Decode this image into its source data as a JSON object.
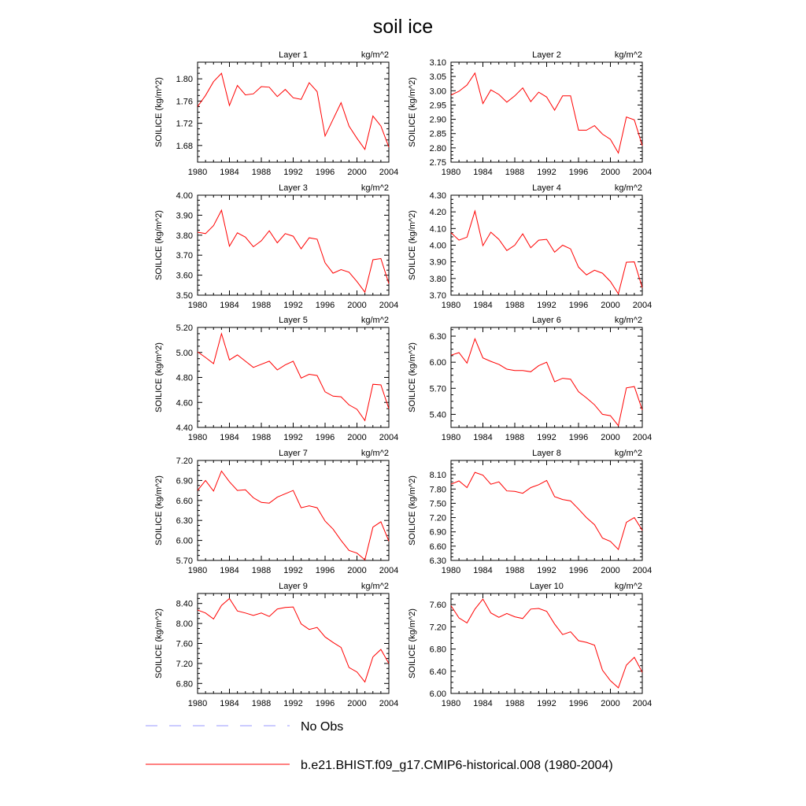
{
  "figure": {
    "title": "soil ice",
    "line_color": "#ff0000",
    "obs_color": "#9999ff"
  },
  "legend": {
    "obs_label": "No Obs",
    "model_label": "b.e21.BHIST.f09_g17.CMIP6-historical.008 (1980-2004)"
  },
  "chart_data": [
    {
      "type": "line",
      "title": "Layer 1",
      "units": "kg/m^2",
      "ylabel": "SOILICE  (kg/m^2)",
      "xlim": [
        1980,
        2004
      ],
      "xticks": [
        "1980",
        "1984",
        "1988",
        "1992",
        "1996",
        "2000",
        "2004"
      ],
      "ylim": [
        1.65,
        1.83
      ],
      "yticks": [
        "1.68",
        "1.72",
        "1.76",
        "1.80"
      ],
      "series": [
        {
          "name": "b.e21.BHIST.f09_g17.CMIP6-historical.008 (1980-2004)",
          "x": [
            1980,
            1981,
            1982,
            1983,
            1984,
            1985,
            1986,
            1987,
            1988,
            1989,
            1990,
            1991,
            1992,
            1993,
            1994,
            1995,
            1996,
            1997,
            1998,
            1999,
            2000,
            2001,
            2002,
            2003,
            2004
          ],
          "values": [
            1.75,
            1.77,
            1.795,
            1.81,
            1.752,
            1.788,
            1.771,
            1.773,
            1.786,
            1.785,
            1.768,
            1.781,
            1.766,
            1.763,
            1.793,
            1.777,
            1.697,
            1.727,
            1.757,
            1.715,
            1.693,
            1.673,
            1.733,
            1.715,
            1.677
          ]
        }
      ]
    },
    {
      "type": "line",
      "title": "Layer 2",
      "units": "kg/m^2",
      "ylabel": "SOILICE  (kg/m^2)",
      "xlim": [
        1980,
        2004
      ],
      "xticks": [
        "1980",
        "1984",
        "1988",
        "1992",
        "1996",
        "2000",
        "2004"
      ],
      "ylim": [
        2.75,
        3.1
      ],
      "yticks": [
        "2.75",
        "2.80",
        "2.85",
        "2.90",
        "2.95",
        "3.00",
        "3.05",
        "3.10"
      ],
      "series": [
        {
          "name": "b.e21.BHIST.f09_g17.CMIP6-historical.008 (1980-2004)",
          "x": [
            1980,
            1981,
            1982,
            1983,
            1984,
            1985,
            1986,
            1987,
            1988,
            1989,
            1990,
            1991,
            1992,
            1993,
            1994,
            1995,
            1996,
            1997,
            1998,
            1999,
            2000,
            2001,
            2002,
            2003,
            2004
          ],
          "values": [
            2.985,
            2.998,
            3.02,
            3.062,
            2.955,
            3.003,
            2.987,
            2.96,
            2.982,
            3.01,
            2.962,
            2.995,
            2.978,
            2.932,
            2.982,
            2.982,
            2.862,
            2.862,
            2.878,
            2.848,
            2.83,
            2.782,
            2.908,
            2.898,
            2.808
          ]
        }
      ]
    },
    {
      "type": "line",
      "title": "Layer 3",
      "units": "kg/m^2",
      "ylabel": "SOILICE  (kg/m^2)",
      "xlim": [
        1980,
        2004
      ],
      "xticks": [
        "1980",
        "1984",
        "1988",
        "1992",
        "1996",
        "2000",
        "2004"
      ],
      "ylim": [
        3.5,
        4.0
      ],
      "yticks": [
        "3.50",
        "3.60",
        "3.70",
        "3.80",
        "3.90",
        "4.00"
      ],
      "series": [
        {
          "name": "b.e21.BHIST.f09_g17.CMIP6-historical.008 (1980-2004)",
          "x": [
            1980,
            1981,
            1982,
            1983,
            1984,
            1985,
            1986,
            1987,
            1988,
            1989,
            1990,
            1991,
            1992,
            1993,
            1994,
            1995,
            1996,
            1997,
            1998,
            1999,
            2000,
            2001,
            2002,
            2003,
            2004
          ],
          "values": [
            3.815,
            3.808,
            3.848,
            3.925,
            3.745,
            3.812,
            3.79,
            3.742,
            3.772,
            3.822,
            3.762,
            3.808,
            3.795,
            3.732,
            3.787,
            3.78,
            3.662,
            3.61,
            3.628,
            3.615,
            3.568,
            3.515,
            3.677,
            3.683,
            3.558
          ]
        }
      ]
    },
    {
      "type": "line",
      "title": "Layer 4",
      "units": "kg/m^2",
      "ylabel": "SOILICE  (kg/m^2)",
      "xlim": [
        1980,
        2004
      ],
      "xticks": [
        "1980",
        "1984",
        "1988",
        "1992",
        "1996",
        "2000",
        "2004"
      ],
      "ylim": [
        3.7,
        4.3
      ],
      "yticks": [
        "3.70",
        "3.80",
        "3.90",
        "4.00",
        "4.10",
        "4.20",
        "4.30"
      ],
      "series": [
        {
          "name": "b.e21.BHIST.f09_g17.CMIP6-historical.008 (1980-2004)",
          "x": [
            1980,
            1981,
            1982,
            1983,
            1984,
            1985,
            1986,
            1987,
            1988,
            1989,
            1990,
            1991,
            1992,
            1993,
            1994,
            1995,
            1996,
            1997,
            1998,
            1999,
            2000,
            2001,
            2002,
            2003,
            2004
          ],
          "values": [
            4.075,
            4.03,
            4.048,
            4.205,
            3.997,
            4.078,
            4.035,
            3.968,
            4.0,
            4.068,
            3.985,
            4.03,
            4.035,
            3.958,
            4.0,
            3.978,
            3.868,
            3.822,
            3.85,
            3.832,
            3.782,
            3.708,
            3.898,
            3.9,
            3.745
          ]
        }
      ]
    },
    {
      "type": "line",
      "title": "Layer 5",
      "units": "kg/m^2",
      "ylabel": "SOILICE  (kg/m^2)",
      "xlim": [
        1980,
        2004
      ],
      "xticks": [
        "1980",
        "1984",
        "1988",
        "1992",
        "1996",
        "2000",
        "2004"
      ],
      "ylim": [
        4.4,
        5.2
      ],
      "yticks": [
        "4.40",
        "4.60",
        "4.80",
        "5.00",
        "5.20"
      ],
      "series": [
        {
          "name": "b.e21.BHIST.f09_g17.CMIP6-historical.008 (1980-2004)",
          "x": [
            1980,
            1981,
            1982,
            1983,
            1984,
            1985,
            1986,
            1987,
            1988,
            1989,
            1990,
            1991,
            1992,
            1993,
            1994,
            1995,
            1996,
            1997,
            1998,
            1999,
            2000,
            2001,
            2002,
            2003,
            2004
          ],
          "values": [
            5.005,
            4.96,
            4.91,
            5.15,
            4.94,
            4.98,
            4.93,
            4.88,
            4.905,
            4.93,
            4.86,
            4.9,
            4.93,
            4.795,
            4.825,
            4.815,
            4.685,
            4.65,
            4.645,
            4.58,
            4.545,
            4.455,
            4.745,
            4.74,
            4.55
          ]
        }
      ]
    },
    {
      "type": "line",
      "title": "Layer 6",
      "units": "kg/m^2",
      "ylabel": "SOILICE  (kg/m^2)",
      "xlim": [
        1980,
        2004
      ],
      "xticks": [
        "1980",
        "1984",
        "1988",
        "1992",
        "1996",
        "2000",
        "2004"
      ],
      "ylim": [
        5.25,
        6.4
      ],
      "yticks": [
        "5.40",
        "5.70",
        "6.00",
        "6.30"
      ],
      "series": [
        {
          "name": "b.e21.BHIST.f09_g17.CMIP6-historical.008 (1980-2004)",
          "x": [
            1980,
            1981,
            1982,
            1983,
            1984,
            1985,
            1986,
            1987,
            1988,
            1989,
            1990,
            1991,
            1992,
            1993,
            1994,
            1995,
            1996,
            1997,
            1998,
            1999,
            2000,
            2001,
            2002,
            2003,
            2004
          ],
          "values": [
            6.08,
            6.11,
            5.99,
            6.27,
            6.05,
            6.01,
            5.975,
            5.92,
            5.905,
            5.905,
            5.89,
            5.96,
            6.0,
            5.775,
            5.815,
            5.805,
            5.66,
            5.59,
            5.51,
            5.4,
            5.385,
            5.27,
            5.705,
            5.72,
            5.45
          ]
        }
      ]
    },
    {
      "type": "line",
      "title": "Layer 7",
      "units": "kg/m^2",
      "ylabel": "SOILICE  (kg/m^2)",
      "xlim": [
        1980,
        2004
      ],
      "xticks": [
        "1980",
        "1984",
        "1988",
        "1992",
        "1996",
        "2000",
        "2004"
      ],
      "ylim": [
        5.7,
        7.2
      ],
      "yticks": [
        "5.70",
        "6.00",
        "6.30",
        "6.60",
        "6.90",
        "7.20"
      ],
      "series": [
        {
          "name": "b.e21.BHIST.f09_g17.CMIP6-historical.008 (1980-2004)",
          "x": [
            1980,
            1981,
            1982,
            1983,
            1984,
            1985,
            1986,
            1987,
            1988,
            1989,
            1990,
            1991,
            1992,
            1993,
            1994,
            1995,
            1996,
            1997,
            1998,
            1999,
            2000,
            2001,
            2002,
            2003,
            2004
          ],
          "values": [
            6.75,
            6.9,
            6.74,
            7.04,
            6.88,
            6.75,
            6.76,
            6.64,
            6.57,
            6.56,
            6.65,
            6.7,
            6.75,
            6.49,
            6.52,
            6.49,
            6.29,
            6.17,
            6.0,
            5.85,
            5.81,
            5.71,
            6.2,
            6.28,
            5.99
          ]
        }
      ]
    },
    {
      "type": "line",
      "title": "Layer 8",
      "units": "kg/m^2",
      "ylabel": "SOILICE  (kg/m^2)",
      "xlim": [
        1980,
        2004
      ],
      "xticks": [
        "1980",
        "1984",
        "1988",
        "1992",
        "1996",
        "2000",
        "2004"
      ],
      "ylim": [
        6.3,
        8.4
      ],
      "yticks": [
        "6.30",
        "6.60",
        "6.90",
        "7.20",
        "7.50",
        "7.80",
        "8.10"
      ],
      "series": [
        {
          "name": "b.e21.BHIST.f09_g17.CMIP6-historical.008 (1980-2004)",
          "x": [
            1980,
            1981,
            1982,
            1983,
            1984,
            1985,
            1986,
            1987,
            1988,
            1989,
            1990,
            1991,
            1992,
            1993,
            1994,
            1995,
            1996,
            1997,
            1998,
            1999,
            2000,
            2001,
            2002,
            2003,
            2004
          ],
          "values": [
            7.9,
            7.97,
            7.83,
            8.15,
            8.09,
            7.9,
            7.95,
            7.76,
            7.75,
            7.71,
            7.83,
            7.89,
            7.98,
            7.64,
            7.58,
            7.55,
            7.38,
            7.2,
            7.05,
            6.77,
            6.7,
            6.53,
            7.1,
            7.2,
            6.93
          ]
        }
      ]
    },
    {
      "type": "line",
      "title": "Layer 9",
      "units": "kg/m^2",
      "ylabel": "SOILICE  (kg/m^2)",
      "xlim": [
        1980,
        2004
      ],
      "xticks": [
        "1980",
        "1984",
        "1988",
        "1992",
        "1996",
        "2000",
        "2004"
      ],
      "ylim": [
        6.6,
        8.6
      ],
      "yticks": [
        "6.80",
        "7.20",
        "7.60",
        "8.00",
        "8.40"
      ],
      "series": [
        {
          "name": "b.e21.BHIST.f09_g17.CMIP6-historical.008 (1980-2004)",
          "x": [
            1980,
            1981,
            1982,
            1983,
            1984,
            1985,
            1986,
            1987,
            1988,
            1989,
            1990,
            1991,
            1992,
            1993,
            1994,
            1995,
            1996,
            1997,
            1998,
            1999,
            2000,
            2001,
            2002,
            2003,
            2004
          ],
          "values": [
            8.27,
            8.21,
            8.09,
            8.36,
            8.5,
            8.25,
            8.21,
            8.16,
            8.21,
            8.14,
            8.29,
            8.32,
            8.33,
            7.99,
            7.88,
            7.92,
            7.73,
            7.62,
            7.52,
            7.12,
            7.03,
            6.83,
            7.33,
            7.48,
            7.2
          ]
        }
      ]
    },
    {
      "type": "line",
      "title": "Layer 10",
      "units": "kg/m^2",
      "ylabel": "SOILICE  (kg/m^2)",
      "xlim": [
        1980,
        2004
      ],
      "xticks": [
        "1980",
        "1984",
        "1988",
        "1992",
        "1996",
        "2000",
        "2004"
      ],
      "ylim": [
        6.0,
        7.8
      ],
      "yticks": [
        "6.00",
        "6.40",
        "6.80",
        "7.20",
        "7.60"
      ],
      "series": [
        {
          "name": "b.e21.BHIST.f09_g17.CMIP6-historical.008 (1980-2004)",
          "x": [
            1980,
            1981,
            1982,
            1983,
            1984,
            1985,
            1986,
            1987,
            1988,
            1989,
            1990,
            1991,
            1992,
            1993,
            1994,
            1995,
            1996,
            1997,
            1998,
            1999,
            2000,
            2001,
            2002,
            2003,
            2004
          ],
          "values": [
            7.58,
            7.36,
            7.27,
            7.52,
            7.7,
            7.45,
            7.37,
            7.44,
            7.38,
            7.35,
            7.52,
            7.53,
            7.48,
            7.25,
            7.06,
            7.11,
            6.95,
            6.92,
            6.87,
            6.42,
            6.23,
            6.1,
            6.51,
            6.65,
            6.38
          ]
        }
      ]
    }
  ]
}
